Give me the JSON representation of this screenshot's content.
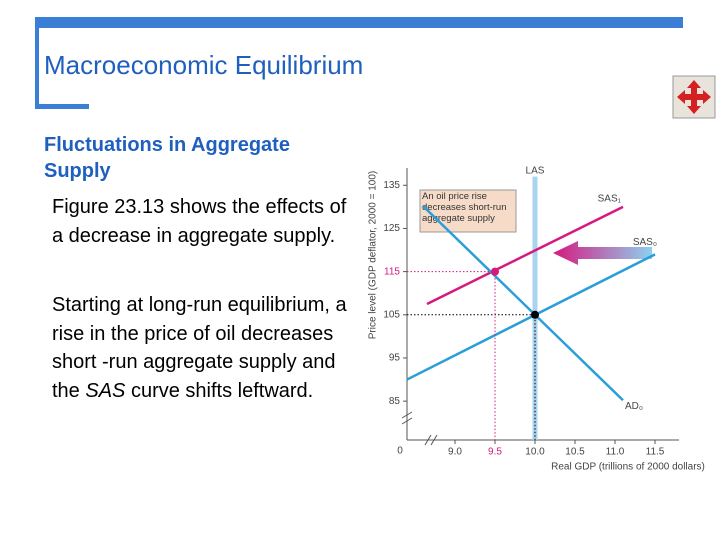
{
  "slide": {
    "title": "Macroeconomic Equilibrium",
    "heading": "Fluctuations in Aggregate Supply",
    "paragraphs": [
      [
        "Figure 23.13 shows the effects of a decrease in aggregate supply."
      ],
      [
        "Starting at long-run equilibrium, a rise in the price of oil decreases short -run aggregate supply and the ",
        "SAS",
        " curve shifts leftward."
      ]
    ]
  },
  "chart_data": {
    "type": "line",
    "y_label": "Price level (GDP deflator, 2000 = 100)",
    "x_label": "Real GDP (trillions of 2000 dollars)",
    "annotation": "An oil price rise decreases short-run aggregate supply",
    "origin_label": "0",
    "xlim": [
      8.4,
      11.8
    ],
    "xticks": [
      {
        "value": 9,
        "label": "9.0"
      },
      9.5,
      {
        "value": 10,
        "label": "10.0"
      },
      10.5,
      {
        "value": 11,
        "label": "11.0"
      },
      11.5
    ],
    "ylim": [
      76,
      139
    ],
    "yticks": [
      85,
      95,
      105,
      115,
      125,
      135
    ],
    "grid": false,
    "series": [
      {
        "name": "LAS",
        "color": "#a9d3ef",
        "x": [
          10,
          10
        ],
        "values": [
          76,
          137
        ]
      },
      {
        "name": "SAS₁",
        "color": "#d6197f",
        "x": [
          8.65,
          11.1
        ],
        "values": [
          107.5,
          130
        ]
      },
      {
        "name": "SAS₀",
        "color": "#2a9ed8",
        "x": [
          8.4,
          11.5
        ],
        "values": [
          90,
          119
        ]
      },
      {
        "name": "AD₀",
        "color": "#2a9ed8",
        "x": [
          8.6,
          11.1
        ],
        "values": [
          130.2,
          85.2
        ]
      }
    ],
    "points": [
      {
        "x": 10,
        "y": 105,
        "color": "#000000"
      },
      {
        "x": 9.5,
        "y": 115,
        "color": "#d6197f"
      }
    ]
  }
}
